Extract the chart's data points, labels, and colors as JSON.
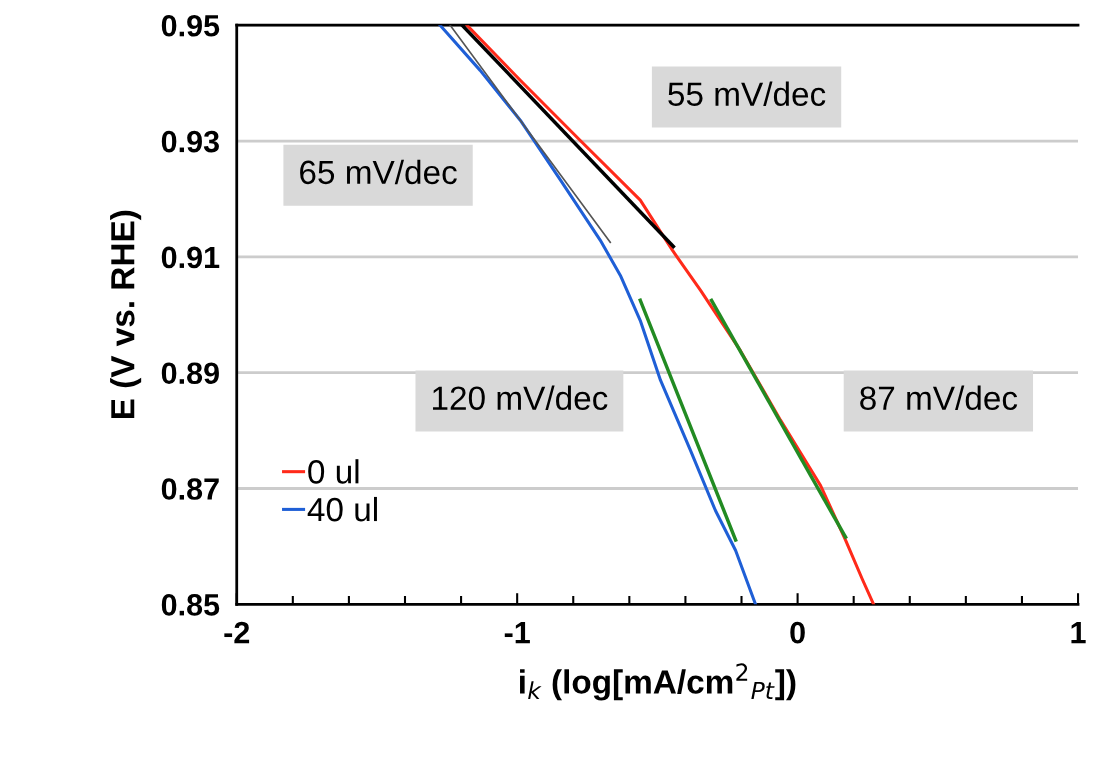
{
  "chart_data": {
    "type": "line",
    "xlabel": "i$_{k}$ (log[mA/cm$^{2}$$_{Pt}$])",
    "ylabel": "E (V vs. RHE)",
    "series": [
      {
        "name": "0 ul",
        "color": "#ff2a1a",
        "x": [
          -1.179,
          -0.989,
          -0.775,
          -0.561,
          -0.446,
          -0.346,
          -0.204,
          -0.061,
          0.082,
          0.171,
          0.232,
          0.271
        ],
        "values": [
          0.95,
          0.9405,
          0.9301,
          0.9198,
          0.9111,
          0.9042,
          0.8938,
          0.8818,
          0.8705,
          0.8611,
          0.8542,
          0.85
        ]
      },
      {
        "name": "40 ul",
        "color": "#1f5fd6",
        "x": [
          -1.275,
          -1.132,
          -0.989,
          -0.846,
          -0.704,
          -0.632,
          -0.561,
          -0.489,
          -0.382,
          -0.293,
          -0.221,
          -0.15
        ],
        "values": [
          0.95,
          0.9422,
          0.9336,
          0.9233,
          0.9129,
          0.9068,
          0.899,
          0.8887,
          0.8766,
          0.8662,
          0.8593,
          0.85
        ]
      },
      {
        "color": "#000000",
        "x": [
          -1.196,
          -0.443
        ],
        "values": [
          0.95,
          0.9118
        ]
      },
      {
        "color": "#555555",
        "x": [
          -1.239,
          -0.668
        ],
        "values": [
          0.95,
          0.9125
        ]
      },
      {
        "color": "#228b22",
        "x": [
          -0.307,
          0.171
        ],
        "values": [
          0.9025,
          0.8616
        ]
      },
      {
        "color": "#228b22",
        "x": [
          -0.561,
          -0.221
        ],
        "values": [
          0.9025,
          0.8611
        ]
      }
    ],
    "annotations": [
      "55 mV/dec",
      "65 mV/dec",
      "120 mV/dec",
      "87 mV/dec"
    ],
    "xlim": [
      -2,
      1
    ],
    "xticks": [
      -2,
      -1,
      0,
      1
    ],
    "ylim": [
      0.85,
      0.95
    ],
    "yticks": [
      0.85,
      0.87,
      0.89,
      0.91,
      0.93,
      0.95
    ],
    "grid": "y",
    "legend": "bottom left",
    "marker": "none",
    "line_style": "solid"
  }
}
